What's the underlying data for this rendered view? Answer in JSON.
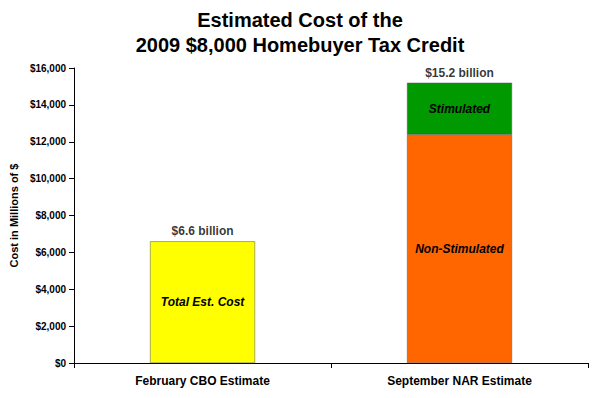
{
  "chart_data": {
    "type": "bar",
    "title": "Estimated Cost of the\n2009 $8,000 Homebuyer Tax Credit",
    "y_label": "Cost in Millions of $",
    "categories": [
      "February CBO Estimate",
      "September NAR Estimate"
    ],
    "series": [
      {
        "name": "Total Est. Cost",
        "color": "#ffff00",
        "values": [
          6600,
          null
        ]
      },
      {
        "name": "Non-Stimulated",
        "color": "#ff6600",
        "values": [
          null,
          12400
        ]
      },
      {
        "name": "Stimulated",
        "color": "#009900",
        "values": [
          null,
          2800
        ]
      }
    ],
    "stacked": true,
    "annotations": [
      {
        "x": "February CBO Estimate",
        "y": 6600,
        "text": "$6.6 billion"
      },
      {
        "x": "September NAR Estimate",
        "y": 15200,
        "text": "$15.2 billion"
      }
    ],
    "ylim": [
      0,
      16000
    ],
    "yticks": [
      {
        "value": 0,
        "label": "$0"
      },
      {
        "value": 2000,
        "label": "$2,000"
      },
      {
        "value": 4000,
        "label": "$4,000"
      },
      {
        "value": 6000,
        "label": "$6,000"
      },
      {
        "value": 8000,
        "label": "$8,000"
      },
      {
        "value": 10000,
        "label": "$10,000"
      },
      {
        "value": 12000,
        "label": "$12,000"
      },
      {
        "value": 14000,
        "label": "$14,000"
      },
      {
        "value": 16000,
        "label": "$16,000"
      }
    ],
    "grid": false
  }
}
